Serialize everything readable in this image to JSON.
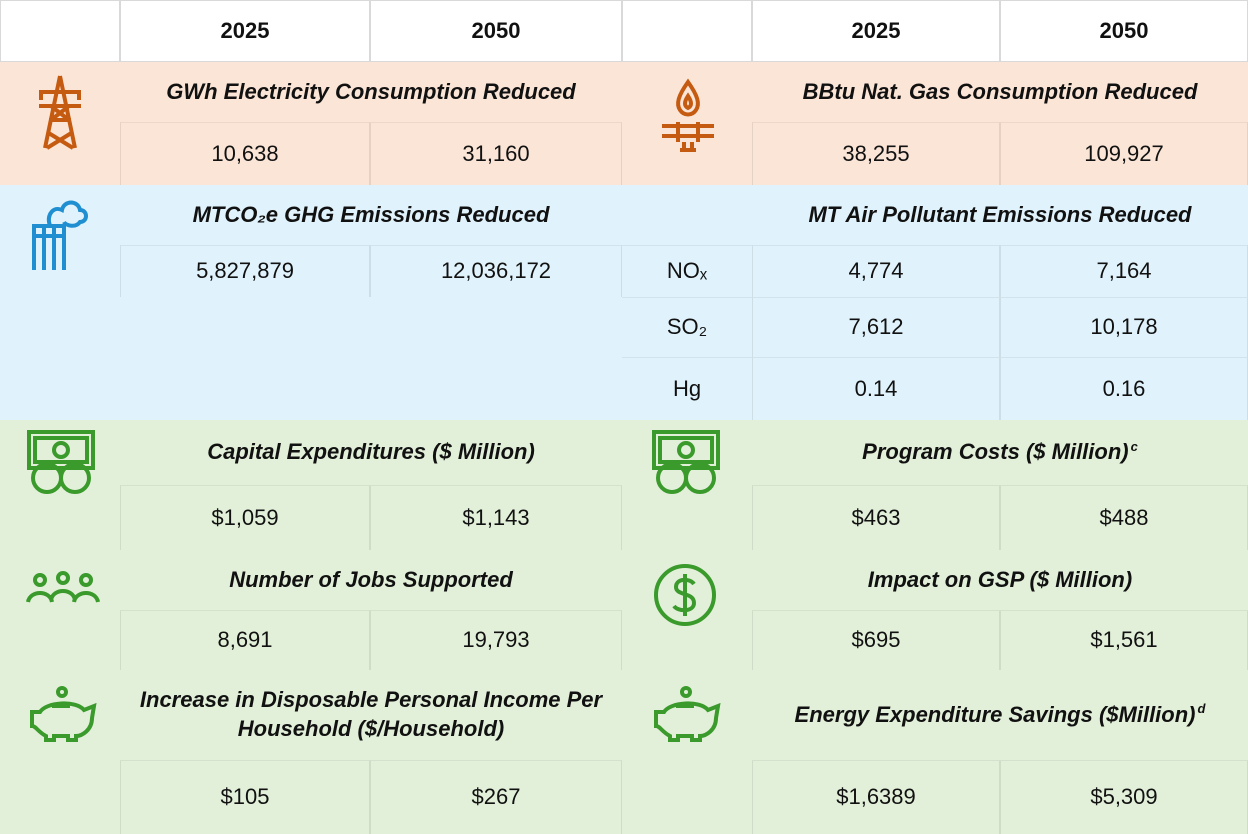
{
  "header": [
    "2025",
    "2050",
    "2025",
    "2050"
  ],
  "electricity": {
    "title": "GWh Electricity Consumption Reduced",
    "values": [
      "10,638",
      "31,160"
    ]
  },
  "natural_gas": {
    "title": "BBtu Nat. Gas Consumption Reduced",
    "values": [
      "38,255",
      "109,927"
    ]
  },
  "ghg": {
    "title": "MTCO₂e GHG Emissions Reduced",
    "values": [
      "5,827,879",
      "12,036,172"
    ]
  },
  "air_pollutants": {
    "title": "MT Air Pollutant Emissions Reduced",
    "rows": [
      {
        "label": "NOₓ",
        "values": [
          "4,774",
          "7,164"
        ]
      },
      {
        "label": "SO₂",
        "values": [
          "7,612",
          "10,178"
        ]
      },
      {
        "label": "Hg",
        "values": [
          "0.14",
          "0.16"
        ]
      }
    ]
  },
  "capital": {
    "title": "Capital Expenditures ($ Million)",
    "values": [
      "$1,059",
      "$1,143"
    ]
  },
  "program_costs": {
    "title": "Program Costs ($ Million)",
    "note": "c",
    "values": [
      "$463",
      "$488"
    ]
  },
  "jobs": {
    "title": "Number of Jobs Supported",
    "values": [
      "8,691",
      "19,793"
    ]
  },
  "gsp": {
    "title": "Impact on GSP ($ Million)",
    "values": [
      "$695",
      "$1,561"
    ]
  },
  "income": {
    "title": "Increase in Disposable Personal Income Per Household ($/Household)",
    "values": [
      "$105",
      "$267"
    ]
  },
  "energy_savings": {
    "title": "Energy Expenditure Savings ($Million)",
    "note": "d",
    "values": [
      "$1,6389",
      "$5,309"
    ]
  }
}
